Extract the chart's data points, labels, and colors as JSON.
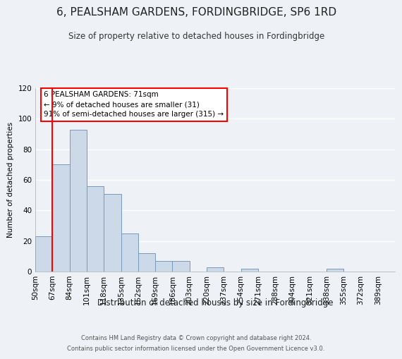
{
  "title": "6, PEALSHAM GARDENS, FORDINGBRIDGE, SP6 1RD",
  "subtitle": "Size of property relative to detached houses in Fordingbridge",
  "xlabel": "Distribution of detached houses by size in Fordingbridge",
  "ylabel": "Number of detached properties",
  "bin_labels": [
    "50sqm",
    "67sqm",
    "84sqm",
    "101sqm",
    "118sqm",
    "135sqm",
    "152sqm",
    "169sqm",
    "186sqm",
    "203sqm",
    "220sqm",
    "237sqm",
    "254sqm",
    "271sqm",
    "288sqm",
    "304sqm",
    "321sqm",
    "338sqm",
    "355sqm",
    "372sqm",
    "389sqm"
  ],
  "bar_heights": [
    23,
    70,
    93,
    56,
    51,
    25,
    12,
    7,
    7,
    0,
    3,
    0,
    2,
    0,
    0,
    0,
    0,
    2,
    0,
    0,
    0
  ],
  "bar_color": "#ccd9e8",
  "bar_edge_color": "#7799bb",
  "ylim": [
    0,
    120
  ],
  "yticks": [
    0,
    20,
    40,
    60,
    80,
    100,
    120
  ],
  "property_line_x": 1,
  "property_line_label": "6 PEALSHAM GARDENS: 71sqm",
  "annotation_line1": "← 9% of detached houses are smaller (31)",
  "annotation_line2": "91% of semi-detached houses are larger (315) →",
  "footer_line1": "Contains HM Land Registry data © Crown copyright and database right 2024.",
  "footer_line2": "Contains public sector information licensed under the Open Government Licence v3.0.",
  "background_color": "#eef2f7",
  "grid_color": "#ffffff",
  "title_fontsize": 11,
  "subtitle_fontsize": 9
}
